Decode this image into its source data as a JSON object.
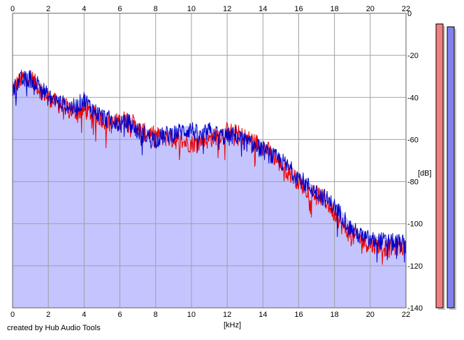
{
  "footer": {
    "credit": "created by Hub Audio Tools"
  },
  "chart_data": {
    "type": "area",
    "title": "",
    "xlabel": "[kHz]",
    "ylabel": "[dB]",
    "xlim": [
      0,
      22
    ],
    "ylim": [
      -140,
      0
    ],
    "x_ticks": [
      0,
      2,
      4,
      6,
      8,
      10,
      12,
      14,
      16,
      18,
      20,
      22
    ],
    "y_ticks": [
      0,
      -20,
      -40,
      -60,
      -80,
      -100,
      -120,
      -140
    ],
    "y_tick_labels": [
      "0",
      "-20",
      "-40",
      "-60",
      "-80",
      "-100",
      "-120",
      "-140"
    ],
    "grid": true,
    "colors": {
      "fill": "#c4c4ff",
      "channel_a": "#ee0000",
      "channel_b": "#0000c8",
      "grid": "#a0a0a0",
      "meter_a": "#f08080",
      "meter_b": "#8080f0"
    },
    "x": [
      0,
      0.5,
      1,
      1.5,
      2,
      2.5,
      3,
      3.5,
      4,
      4.5,
      5,
      5.5,
      6,
      6.5,
      7,
      7.5,
      8,
      8.5,
      9,
      9.5,
      10,
      10.5,
      11,
      11.5,
      12,
      12.5,
      13,
      13.5,
      14,
      14.5,
      15,
      15.5,
      16,
      16.5,
      17,
      17.5,
      18,
      18.5,
      19,
      19.5,
      20,
      20.5,
      21,
      21.5,
      22
    ],
    "series": [
      {
        "values": [
          -36,
          -31,
          -30,
          -36,
          -40,
          -43,
          -45,
          -47,
          -46,
          -48,
          -50,
          -53,
          -51,
          -50,
          -55,
          -57,
          -58,
          -59,
          -60,
          -61,
          -62,
          -61,
          -60,
          -58,
          -56,
          -57,
          -59,
          -61,
          -63,
          -67,
          -72,
          -76,
          -80,
          -84,
          -86,
          -89,
          -95,
          -102,
          -106,
          -108,
          -110,
          -110,
          -112,
          -111,
          -111
        ]
      },
      {
        "values": [
          -35,
          -32,
          -31,
          -34,
          -40,
          -42,
          -44,
          -45,
          -41,
          -46,
          -49,
          -51,
          -53,
          -52,
          -56,
          -58,
          -60,
          -58,
          -57,
          -56,
          -55,
          -59,
          -56,
          -58,
          -59,
          -58,
          -61,
          -63,
          -65,
          -68,
          -70,
          -74,
          -78,
          -82,
          -85,
          -88,
          -92,
          -97,
          -103,
          -106,
          -108,
          -108,
          -109,
          -109,
          -110
        ]
      }
    ],
    "meters": [
      {
        "fraction": 0.985
      },
      {
        "fraction": 0.975
      }
    ]
  }
}
